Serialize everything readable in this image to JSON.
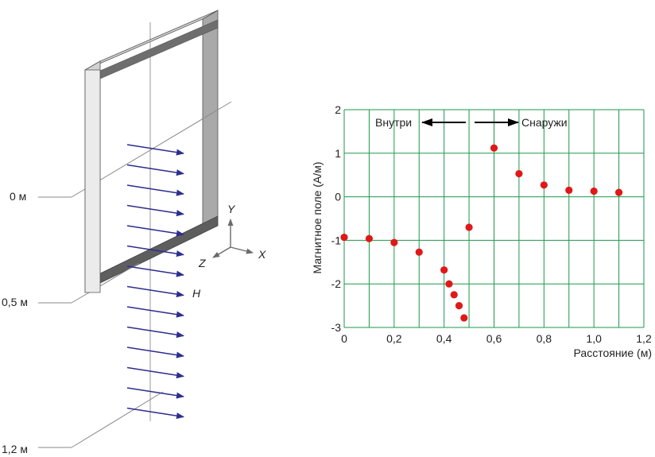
{
  "diagram": {
    "distance_labels": [
      "0 м",
      "0,5 м",
      "1,2 м"
    ],
    "field_label": "H",
    "axes": {
      "x": "X",
      "y": "Y",
      "z": "Z"
    },
    "colors": {
      "frame_light": "#e2e2e2",
      "frame_shade": "#a9a9a9",
      "frame_dark": "#5e5e5e",
      "arrow": "#2e2e8f"
    }
  },
  "chart_data": {
    "type": "scatter",
    "x": [
      0.0,
      0.1,
      0.2,
      0.3,
      0.4,
      0.42,
      0.44,
      0.46,
      0.48,
      0.5,
      0.6,
      0.7,
      0.8,
      0.9,
      1.0,
      1.1
    ],
    "y": [
      -0.93,
      -0.96,
      -1.05,
      -1.27,
      -1.68,
      -2.0,
      -2.25,
      -2.5,
      -2.78,
      -0.7,
      1.12,
      0.53,
      0.27,
      0.15,
      0.13,
      0.1
    ],
    "xlabel": "Расстояние (м)",
    "ylabel": "Магнитное поле (А/м)",
    "xlim": [
      0,
      1.2
    ],
    "ylim": [
      -3,
      2
    ],
    "x_ticks": [
      "0",
      "0,2",
      "0,4",
      "0,6",
      "0,8",
      "1,0",
      "1,2"
    ],
    "y_ticks": [
      "2",
      "1",
      "0",
      "-1",
      "-2",
      "-3"
    ],
    "grid": true,
    "annotations": {
      "inside": "Внутри",
      "outside": "Снаружи"
    },
    "colors": {
      "grid": "#1a9a4a",
      "point": "#e01818"
    }
  }
}
